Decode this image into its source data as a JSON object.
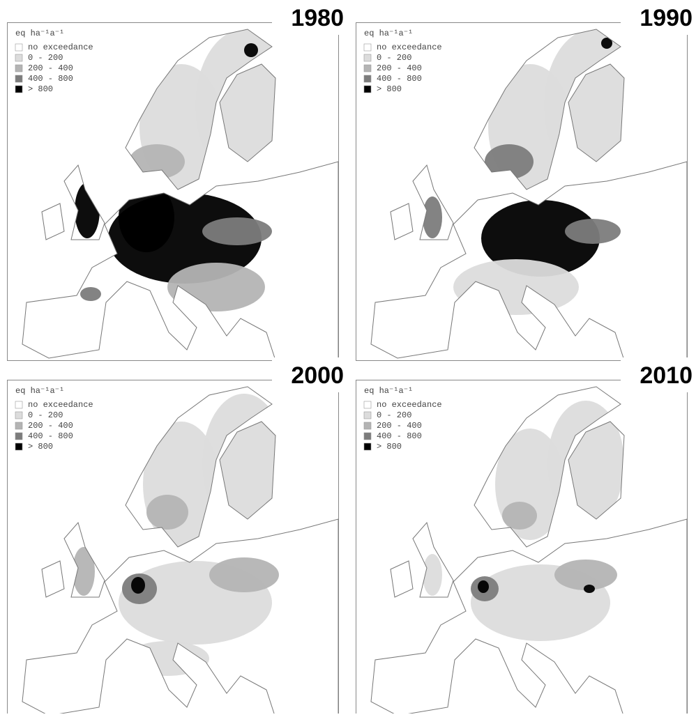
{
  "legend": {
    "title": "eq ha⁻¹a⁻¹",
    "items": [
      {
        "label": "no exceedance",
        "color": "#ffffff"
      },
      {
        "label": "0 - 200",
        "color": "#dcdcdc"
      },
      {
        "label": "200 - 400",
        "color": "#b4b4b4"
      },
      {
        "label": "400 - 800",
        "color": "#7c7c7c"
      },
      {
        "label": "> 800",
        "color": "#000000"
      }
    ]
  },
  "panels": [
    {
      "year": "1980"
    },
    {
      "year": "1990"
    },
    {
      "year": "2000"
    },
    {
      "year": "2010"
    }
  ]
}
